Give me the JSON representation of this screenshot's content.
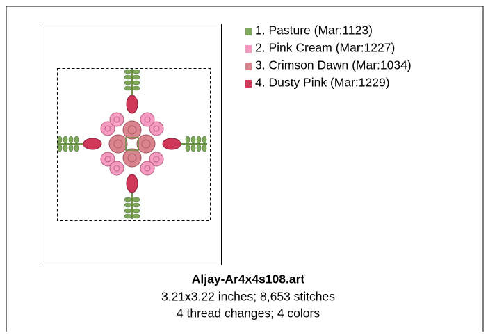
{
  "legend": [
    {
      "label": "1.  Pasture (Mar:1123)",
      "color": "#7fa85a"
    },
    {
      "label": "2.  Pink Cream (Mar:1227)",
      "color": "#f59ac0"
    },
    {
      "label": "3.  Crimson Dawn (Mar:1034)",
      "color": "#d9848e"
    },
    {
      "label": "4.  Dusty Pink (Mar:1229)",
      "color": "#d0385a"
    }
  ],
  "file": {
    "name": "Aljay-Ar4x4s108.art",
    "details": [
      "3.21x3.22 inches; 8,653 stitches",
      "4 thread changes; 4 colors"
    ]
  }
}
